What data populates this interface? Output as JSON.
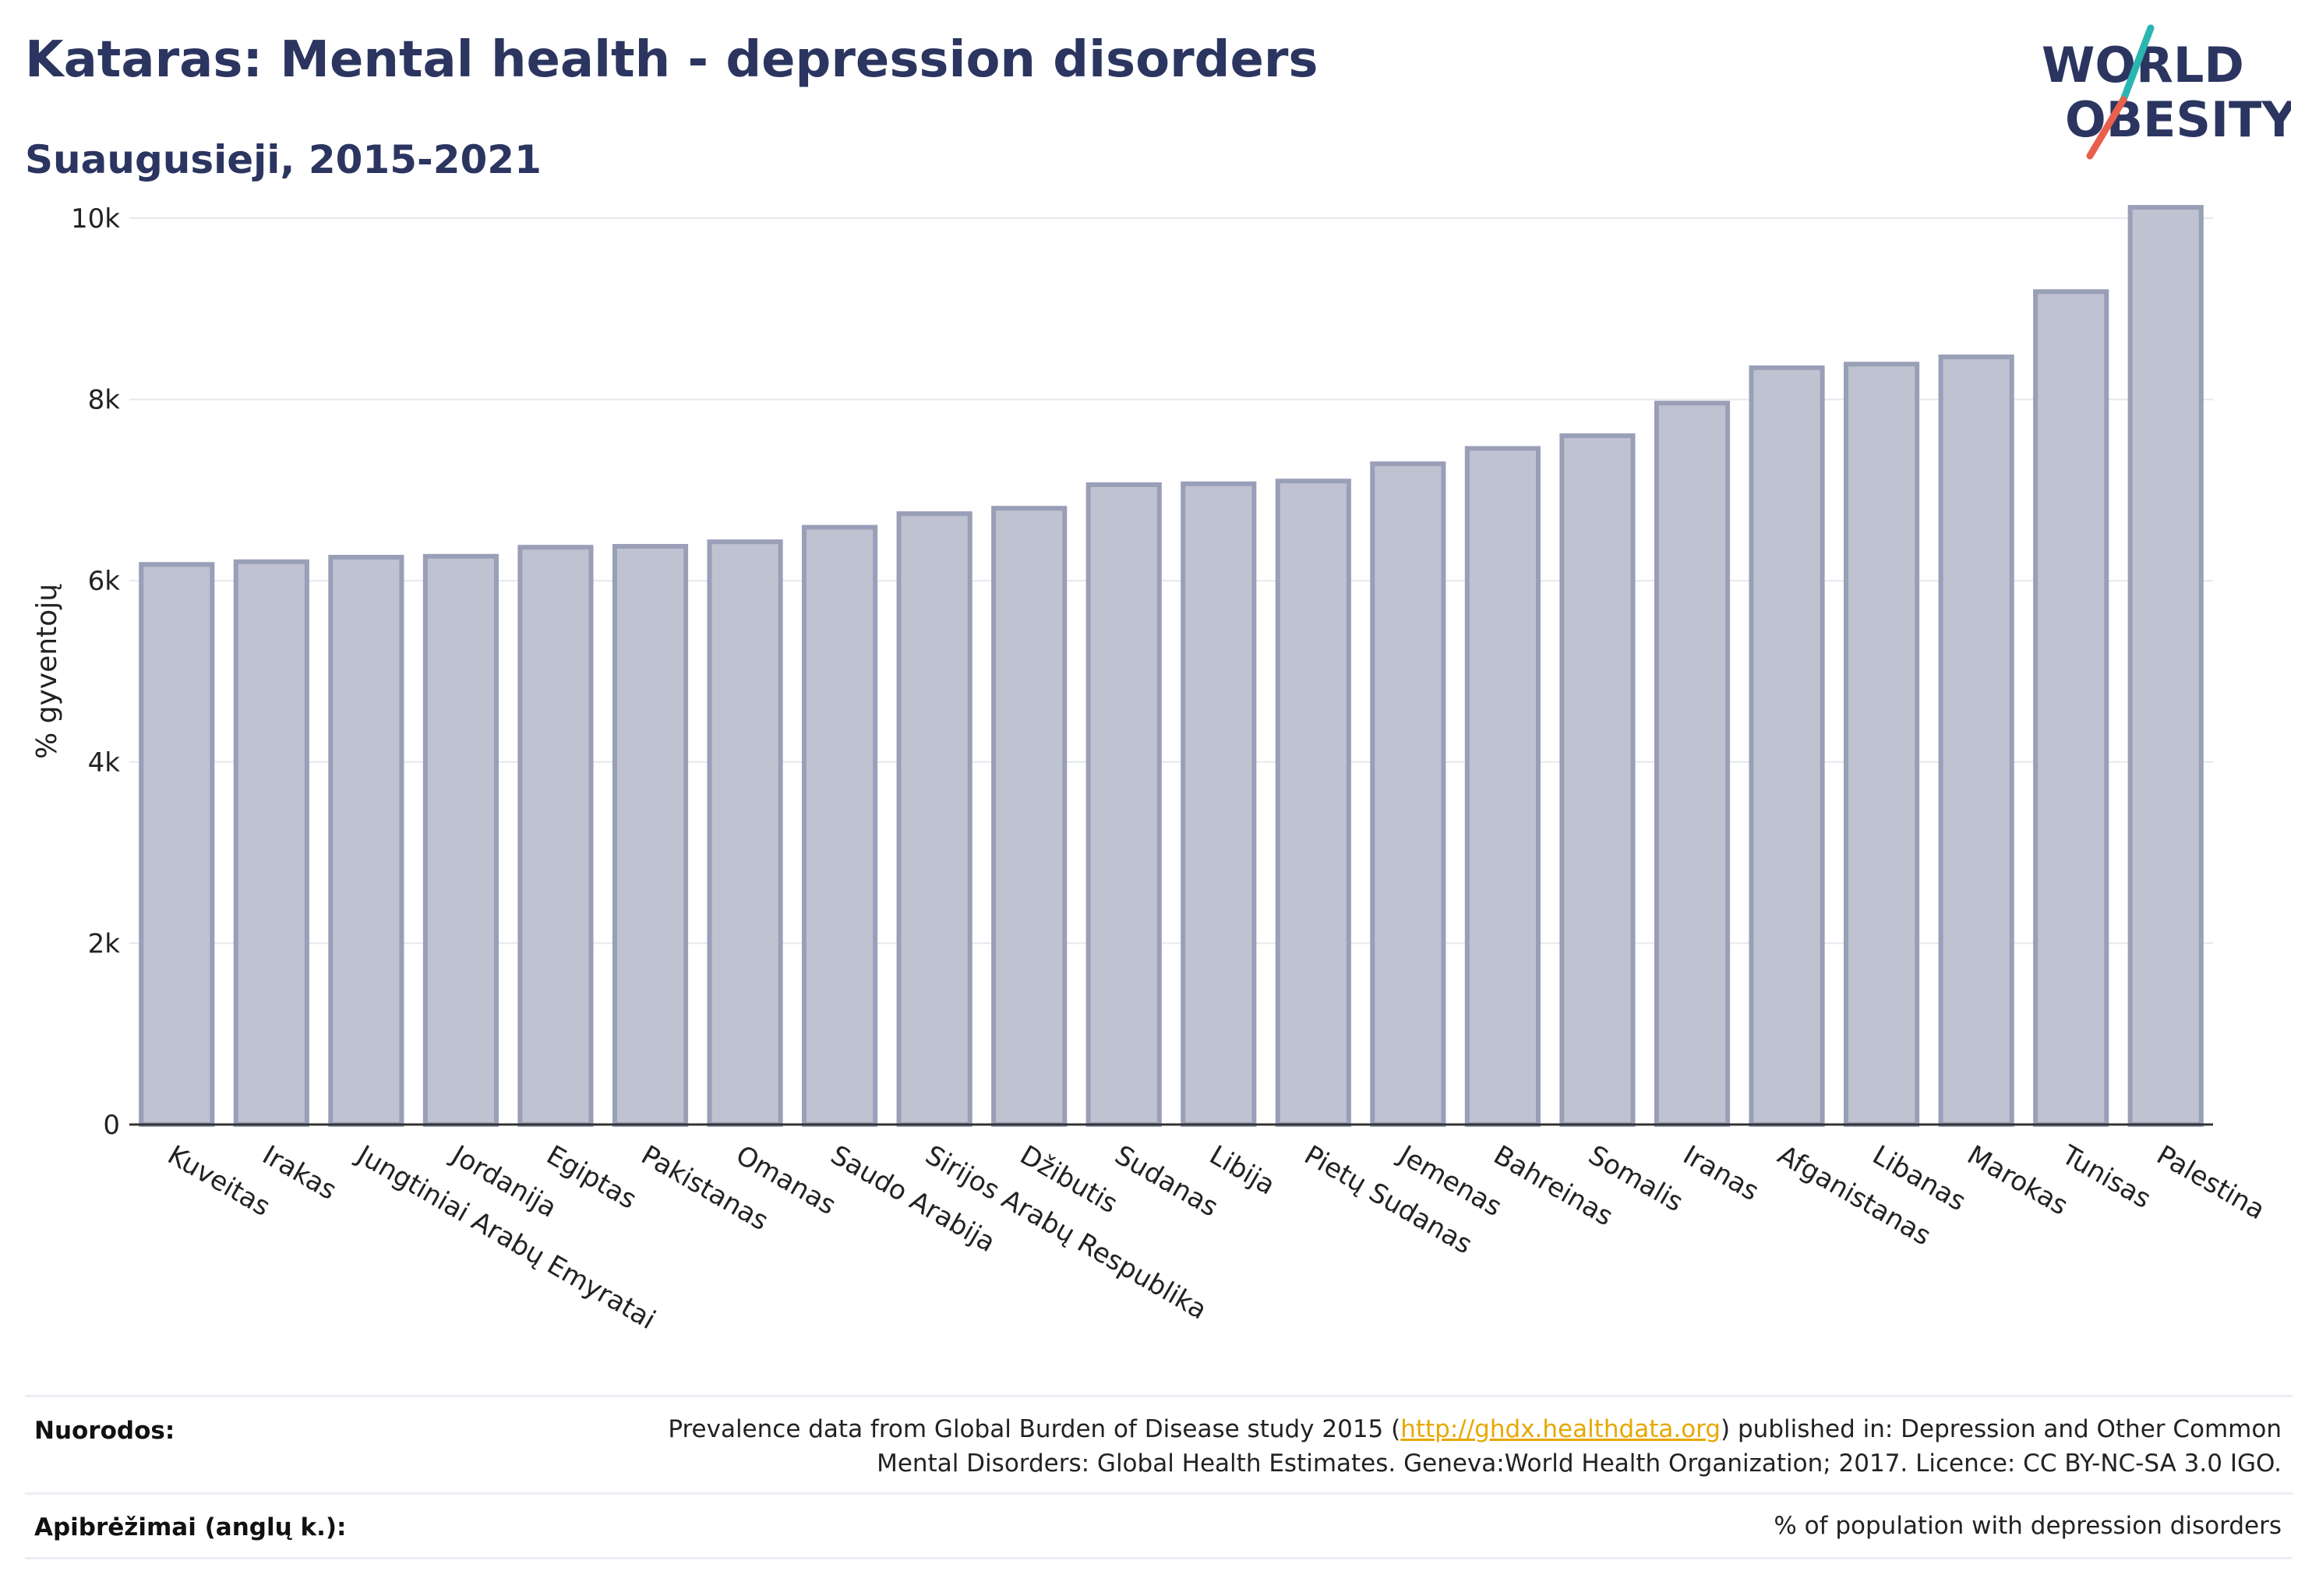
{
  "title": "Kataras: Mental health - depression disorders",
  "subtitle": "Suaugusieji, 2015-2021",
  "logo": {
    "line1": "WORLD",
    "line2": "OBESITY",
    "colors": {
      "text": "#2b3560",
      "slash_top": "#2bb5b0",
      "slash_bottom": "#e8604c"
    }
  },
  "chart_data": {
    "type": "bar",
    "title": "",
    "xlabel": "",
    "ylabel": "% gyventojų",
    "ylim": [
      0,
      10000
    ],
    "yticks": [
      0,
      2000,
      4000,
      6000,
      8000,
      10000
    ],
    "ytick_labels": [
      "0",
      "2k",
      "4k",
      "6k",
      "8k",
      "10k"
    ],
    "grid": true,
    "bar_color": "#bfc2d0",
    "bar_edge_color": "#9a9fb8",
    "categories": [
      "Kuveitas",
      "Irakas",
      "Jungtiniai Arabų Emyratai",
      "Jordanija",
      "Egiptas",
      "Pakistanas",
      "Omanas",
      "Saudo Arabija",
      "Sirijos Arabų Respublika",
      "Džibutis",
      "Sudanas",
      "Libija",
      "Pietų Sudanas",
      "Jemenas",
      "Bahreinas",
      "Somalis",
      "Iranas",
      "Afganistanas",
      "Libanas",
      "Marokas",
      "Tunisas",
      "Palestina"
    ],
    "values": [
      6180,
      6210,
      6260,
      6270,
      6370,
      6380,
      6430,
      6590,
      6740,
      6800,
      7060,
      7070,
      7100,
      7290,
      7460,
      7600,
      7960,
      8350,
      8390,
      8470,
      9190,
      10120
    ]
  },
  "footer": {
    "sources_label": "Nuorodos:",
    "sources_text_before": "Prevalence data from Global Burden of Disease study 2015 (",
    "sources_link": "http://ghdx.healthdata.org",
    "sources_text_after": ") published in: Depression and Other Common",
    "sources_text_line2": "Mental Disorders: Global Health Estimates. Geneva:World Health Organization; 2017. Licence: CC BY-NC-SA 3.0 IGO.",
    "definitions_label": "Apibrėžimai (anglų k.):",
    "definitions_text": "% of population with depression disorders"
  }
}
